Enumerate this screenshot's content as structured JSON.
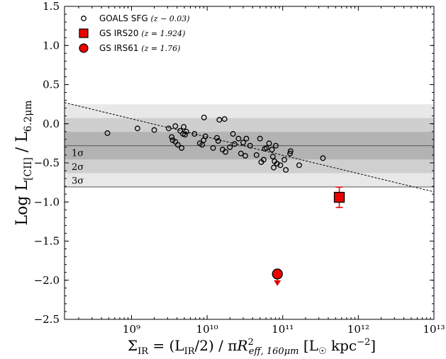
{
  "chart_data": {
    "type": "scatter",
    "xlabel": "Σ_IR = (L_IR/2) / πR²_eff,160μm [L_☉ kpc⁻²]",
    "ylabel": "Log L_[CII] / L_6.2μm",
    "x_scale": "log",
    "xlim": [
      130000000.0,
      10000000000000.0
    ],
    "ylim": [
      -2.5,
      1.5
    ],
    "y_ticks": [
      1.5,
      1.0,
      0.5,
      0.0,
      -0.5,
      -1.0,
      -1.5,
      -2.0,
      -2.5
    ],
    "x_tick_labels": [
      "10⁹",
      "10¹⁰",
      "10¹¹",
      "10¹²",
      "10¹³"
    ],
    "grid": false,
    "legend_position": "top-left",
    "legend": [
      {
        "label": "GOALS SFG",
        "z_text": "(z ∼ 0.03)",
        "marker": "open-circle"
      },
      {
        "label": "GS IRS20",
        "z_text": "(z = 1.924)",
        "marker": "red-square"
      },
      {
        "label": "GS IRS61",
        "z_text": "(z = 1.76)",
        "marker": "red-circle"
      }
    ],
    "bands": {
      "center": -0.28,
      "sigma": 0.176,
      "labels": [
        "1σ",
        "2σ",
        "3σ"
      ]
    },
    "trend_line": {
      "x": [
        130000000.0,
        10000000000000.0
      ],
      "y": [
        0.27,
        -0.87
      ]
    },
    "series": [
      {
        "name": "GOALS SFG",
        "points": [
          [
            480000000.0,
            -0.12
          ],
          [
            1200000000.0,
            -0.06
          ],
          [
            2000000000.0,
            -0.08
          ],
          [
            3100000000.0,
            -0.06
          ],
          [
            3400000000.0,
            -0.17
          ],
          [
            3500000000.0,
            -0.21
          ],
          [
            3800000000.0,
            -0.23
          ],
          [
            3800000000.0,
            -0.03
          ],
          [
            4100000000.0,
            -0.27
          ],
          [
            4400000000.0,
            -0.09
          ],
          [
            4600000000.0,
            -0.31
          ],
          [
            4800000000.0,
            -0.13
          ],
          [
            4900000000.0,
            -0.04
          ],
          [
            5100000000.0,
            -0.14
          ],
          [
            5300000000.0,
            -0.1
          ],
          [
            6800000000.0,
            -0.13
          ],
          [
            8000000000.0,
            -0.25
          ],
          [
            8600000000.0,
            -0.27
          ],
          [
            9000000000.0,
            -0.21
          ],
          [
            9100000000.0,
            0.08
          ],
          [
            9500000000.0,
            -0.16
          ],
          [
            12000000000.0,
            -0.31
          ],
          [
            13500000000.0,
            -0.18
          ],
          [
            14000000000.0,
            -0.22
          ],
          [
            14500000000.0,
            0.05
          ],
          [
            16000000000.0,
            -0.33
          ],
          [
            17000000000.0,
            0.06
          ],
          [
            17500000000.0,
            -0.36
          ],
          [
            20000000000.0,
            -0.3
          ],
          [
            22000000000.0,
            -0.13
          ],
          [
            23000000000.0,
            -0.26
          ],
          [
            26000000000.0,
            -0.19
          ],
          [
            28000000000.0,
            -0.38
          ],
          [
            30000000000.0,
            -0.24
          ],
          [
            32000000000.0,
            -0.41
          ],
          [
            33000000000.0,
            -0.19
          ],
          [
            37000000000.0,
            -0.28
          ],
          [
            45000000000.0,
            -0.4
          ],
          [
            50000000000.0,
            -0.19
          ],
          [
            52000000000.0,
            -0.49
          ],
          [
            56000000000.0,
            -0.46
          ],
          [
            58000000000.0,
            -0.32
          ],
          [
            61000000000.0,
            -0.31
          ],
          [
            66000000000.0,
            -0.25
          ],
          [
            72000000000.0,
            -0.33
          ],
          [
            74000000000.0,
            -0.42
          ],
          [
            76000000000.0,
            -0.56
          ],
          [
            78000000000.0,
            -0.48
          ],
          [
            81000000000.0,
            -0.28
          ],
          [
            84000000000.0,
            -0.51
          ],
          [
            93000000000.0,
            -0.53
          ],
          [
            105000000000.0,
            -0.46
          ],
          [
            110000000000.0,
            -0.59
          ],
          [
            125000000000.0,
            -0.38
          ],
          [
            127000000000.0,
            -0.35
          ],
          [
            165000000000.0,
            -0.53
          ],
          [
            340000000000.0,
            -0.44
          ]
        ]
      },
      {
        "name": "GS IRS20",
        "points": [
          [
            560000000000.0,
            -0.94
          ]
        ],
        "error_low": -1.07,
        "error_high": -0.81
      },
      {
        "name": "GS IRS61",
        "points": [
          [
            85000000000.0,
            -1.92
          ]
        ],
        "upper_limit": true
      }
    ]
  }
}
